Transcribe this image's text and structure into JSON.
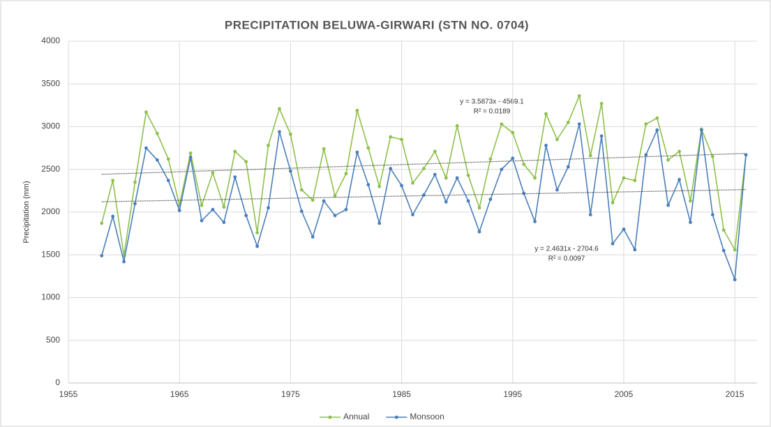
{
  "chart_data": {
    "type": "line",
    "title": "PRECIPITATION BELUWA-GIRWARI (STN NO. 0704)",
    "y_label": "Precipitation (mm)",
    "x": [
      1958,
      1959,
      1960,
      1961,
      1962,
      1963,
      1964,
      1965,
      1966,
      1967,
      1968,
      1969,
      1970,
      1971,
      1972,
      1973,
      1974,
      1975,
      1976,
      1977,
      1978,
      1979,
      1980,
      1981,
      1982,
      1983,
      1984,
      1985,
      1986,
      1987,
      1988,
      1989,
      1990,
      1991,
      1992,
      1993,
      1994,
      1995,
      1996,
      1997,
      1998,
      1999,
      2000,
      2001,
      2002,
      2003,
      2004,
      2005,
      2006,
      2007,
      2008,
      2009,
      2010,
      2011,
      2012,
      2013,
      2014,
      2015,
      2016
    ],
    "series": [
      {
        "name": "Annual",
        "color": "#8dc04a",
        "values": [
          1870,
          2370,
          1490,
          2350,
          3170,
          2920,
          2620,
          2080,
          2690,
          2080,
          2460,
          2060,
          2710,
          2590,
          1760,
          2780,
          3210,
          2910,
          2260,
          2140,
          2740,
          2190,
          2450,
          3190,
          2750,
          2300,
          2880,
          2850,
          2340,
          2510,
          2710,
          2400,
          3010,
          2430,
          2050,
          2620,
          3030,
          2930,
          2560,
          2400,
          3150,
          2850,
          3050,
          3360,
          2660,
          3270,
          2110,
          2400,
          2370,
          3030,
          3100,
          2610,
          2710,
          2130,
          2970,
          2650,
          1790,
          1560,
          2670
        ]
      },
      {
        "name": "Monsoon",
        "color": "#4a7ebb",
        "values": [
          1490,
          1950,
          1420,
          2100,
          2750,
          2610,
          2370,
          2020,
          2640,
          1900,
          2030,
          1880,
          2410,
          1960,
          1600,
          2050,
          2940,
          2480,
          2010,
          1710,
          2130,
          1960,
          2030,
          2700,
          2320,
          1870,
          2510,
          2310,
          1970,
          2200,
          2440,
          2120,
          2400,
          2130,
          1770,
          2150,
          2500,
          2630,
          2220,
          1890,
          2780,
          2260,
          2530,
          3030,
          1970,
          2890,
          1630,
          1800,
          1560,
          2670,
          2960,
          2080,
          2380,
          1880,
          2960,
          1970,
          1550,
          1210,
          2670
        ]
      }
    ],
    "annotations": [
      "y = 3.5873x - 4569.1",
      "R² = 0.0189",
      "y = 2.4631x - 2704.6",
      "R² = 0.0097"
    ],
    "xlim": [
      1955,
      2017
    ],
    "xticks": [
      1955,
      1965,
      1975,
      1985,
      1995,
      2005,
      2015
    ],
    "ylim": [
      0,
      4000
    ],
    "yticks": [
      0,
      500,
      1000,
      1500,
      2000,
      2500,
      3000,
      3500,
      4000
    ],
    "grid": true,
    "trendline_color": "#555555",
    "legend": "bottom"
  }
}
